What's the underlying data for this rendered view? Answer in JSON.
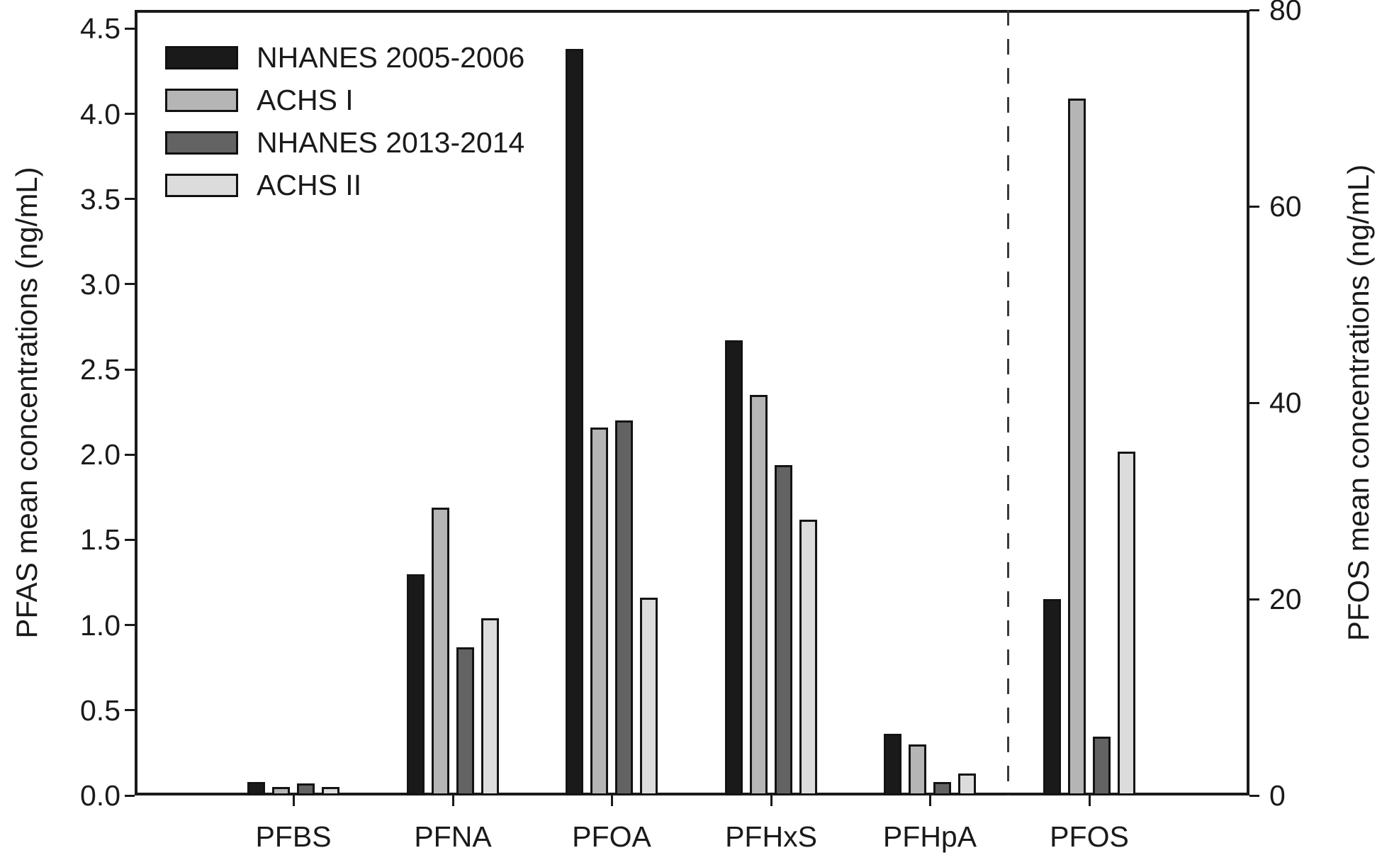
{
  "chart_data": {
    "type": "bar",
    "title": "",
    "categories": [
      "PFBS",
      "PFNA",
      "PFOA",
      "PFHxS",
      "PFHpA",
      "PFOS"
    ],
    "series": [
      {
        "name": "NHANES 2005-2006",
        "color": "#1a1a1a",
        "values": [
          0.08,
          1.3,
          4.38,
          2.67,
          0.36,
          20
        ]
      },
      {
        "name": "ACHS I",
        "color": "#b5b5b5",
        "values": [
          0.05,
          1.69,
          2.16,
          2.35,
          0.3,
          71
        ]
      },
      {
        "name": "NHANES 2013-2014",
        "color": "#636363",
        "values": [
          0.07,
          0.87,
          2.2,
          1.94,
          0.08,
          6
        ]
      },
      {
        "name": "ACHS II",
        "color": "#dcdcdc",
        "values": [
          0.05,
          1.04,
          1.16,
          1.62,
          0.13,
          35
        ]
      }
    ],
    "left_axis": {
      "label": "PFAS mean concentrations (ng/mL)",
      "tick_labels": [
        "0.0",
        "0.5",
        "1.0",
        "1.5",
        "2.0",
        "2.5",
        "3.0",
        "3.5",
        "4.0",
        "4.5"
      ],
      "range": [
        0,
        4.61
      ]
    },
    "right_axis": {
      "label": "PFOS mean concentrations (ng/mL)",
      "tick_labels": [
        "0",
        "20",
        "40",
        "60",
        "80"
      ],
      "range": [
        0,
        80
      ]
    },
    "right_axis_category": "PFOS",
    "separator_before_category": "PFOS",
    "legend_position": "top-left",
    "grid": false,
    "axis_color": "#1a1a1a",
    "background_color": "#ffffff"
  }
}
